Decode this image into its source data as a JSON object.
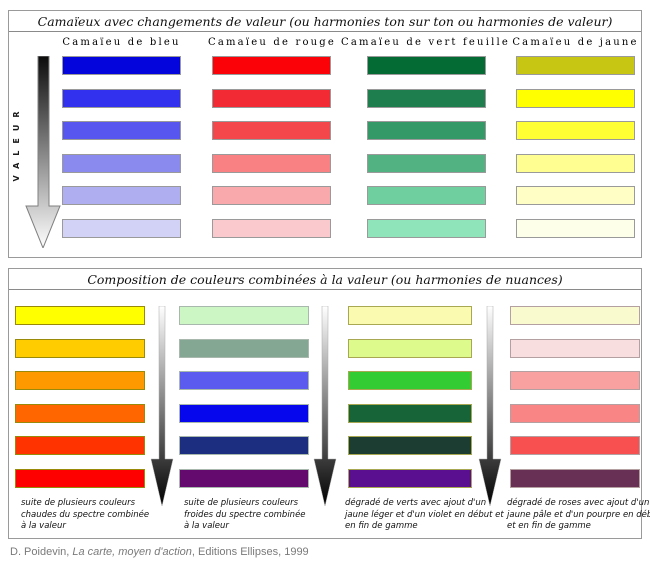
{
  "panel1": {
    "title": "Camaïeux  avec changements de valeur (ou harmonies ton sur ton ou harmonies de valeur)",
    "value_arrow_label": "VALEUR",
    "columns": [
      {
        "header": "Camaïeu de bleu",
        "swatch_border": "#9a9a9a",
        "swatches": [
          "#0404dd",
          "#3232ee",
          "#5757f0",
          "#8a8aee",
          "#aeaef0",
          "#d2d2f7"
        ]
      },
      {
        "header": "Camaïeu de rouge",
        "swatch_border": "#9a9a9a",
        "swatches": [
          "#fb0208",
          "#f12a33",
          "#f4474c",
          "#f98183",
          "#f9a8ab",
          "#f9c9cd"
        ]
      },
      {
        "header": "Camaïeu de vert feuille",
        "swatch_border": "#9a9a9a",
        "swatches": [
          "#056b35",
          "#1f7e4d",
          "#339966",
          "#53b282",
          "#6fcf9e",
          "#90e4ba"
        ]
      },
      {
        "header": "Camaïeu de jaune",
        "swatch_border": "#9a9a9a",
        "swatches": [
          "#c6c613",
          "#ffff00",
          "#ffff33",
          "#ffff91",
          "#ffffc5",
          "#fdffe8"
        ]
      }
    ]
  },
  "panel2": {
    "title": "Composition de couleurs combinées à la valeur (ou harmonies de nuances)",
    "columns": [
      {
        "swatch_border": "#998a0a",
        "swatches": [
          "#ffff00",
          "#ffcc00",
          "#ff9900",
          "#ff6600",
          "#ff3300",
          "#ff0000"
        ],
        "caption_lines": [
          "suite de plusieurs couleurs",
          "chaudes du spectre combinée",
          " à la valeur"
        ]
      },
      {
        "swatch_border": "#a8b8ac",
        "swatches": [
          "#ccf7c4",
          "#84a794",
          "#5b5bef",
          "#0707ee",
          "#1b2e80",
          "#640a6e"
        ],
        "caption_lines": [
          "suite de plusieurs couleurs",
          "froides du spectre combinée",
          " à la valeur"
        ]
      },
      {
        "swatch_border": "#a8a852",
        "swatches": [
          "#fafab0",
          "#ddfa8c",
          "#33cc33",
          "#176438",
          "#1c3d31",
          "#5a0f90"
        ],
        "caption_lines": [
          "dégradé de verts avec ajout d'un",
          "jaune léger et d'un violet en début et",
          "en fin de gamme"
        ]
      },
      {
        "swatch_border": "#b4a0a0",
        "swatches": [
          "#fafacf",
          "#f8dede",
          "#f9a0a0",
          "#f98585",
          "#f85050",
          "#683055"
        ],
        "caption_lines": [
          "dégradé de roses avec ajout d'un",
          "jaune pâle et d'un pourpre en début",
          "et en fin de gamme"
        ]
      }
    ]
  },
  "footer": {
    "author": "D. Poidevin, ",
    "book_title": "La carte, moyen d'action",
    "rest": ", Editions Ellipses, 1999"
  },
  "colors": {
    "panel_border": "#9a9a9a",
    "arrow_gradient_top_panel": [
      "#0b0b0b",
      "#ffffff"
    ],
    "arrow_gradient_bottom_panel": [
      "#ffffff",
      "#000000"
    ]
  }
}
